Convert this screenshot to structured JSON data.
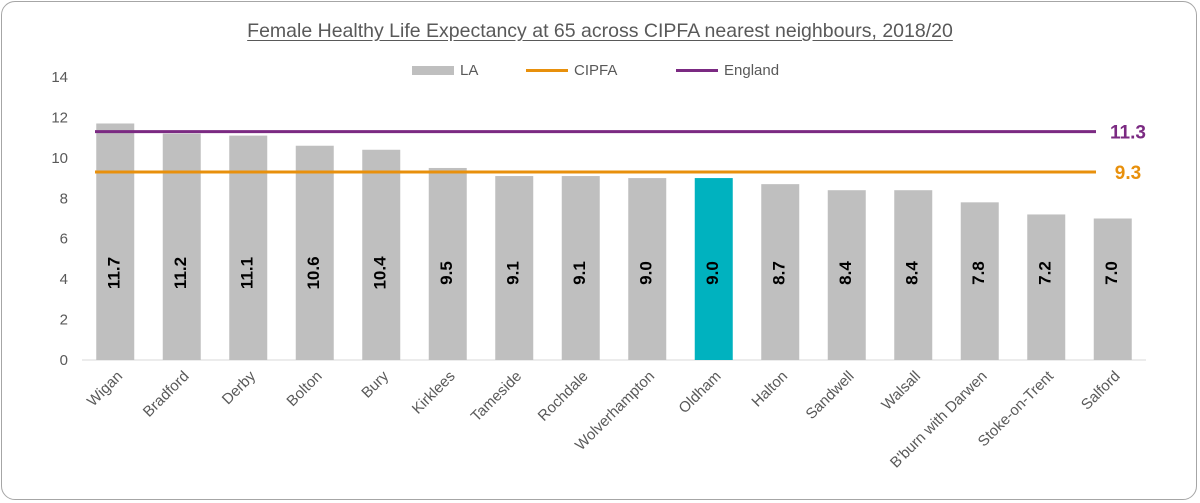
{
  "chart_data": {
    "type": "bar",
    "title": "Female Healthy Life Expectancy at 65 across CIPFA nearest neighbours, 2018/20",
    "categories": [
      "Wigan",
      "Bradford",
      "Derby",
      "Bolton",
      "Bury",
      "Kirklees",
      "Tameside",
      "Rochdale",
      "Wolverhampton",
      "Oldham",
      "Halton",
      "Sandwell",
      "Walsall",
      "B'burn with Darwen",
      "Stoke-on-Trent",
      "Salford"
    ],
    "values": [
      11.7,
      11.2,
      11.1,
      10.6,
      10.4,
      9.5,
      9.1,
      9.1,
      9.0,
      9.0,
      8.7,
      8.4,
      8.4,
      7.8,
      7.2,
      7.0
    ],
    "highlight_category": "Oldham",
    "series": [
      {
        "name": "LA",
        "kind": "bar",
        "color": "#bfbfbf"
      },
      {
        "name": "CIPFA",
        "kind": "line",
        "value": 9.3,
        "color": "#e8900c"
      },
      {
        "name": "England",
        "kind": "line",
        "value": 11.3,
        "color": "#7b2a82"
      }
    ],
    "highlight_color": "#00b2bf",
    "ylim": [
      0,
      14
    ],
    "yticks": [
      0,
      2,
      4,
      6,
      8,
      10,
      12,
      14
    ],
    "reference_labels": [
      "11.3",
      "9.3"
    ],
    "grid": false,
    "legend_position": "top-center",
    "xlabel": "",
    "ylabel": ""
  }
}
